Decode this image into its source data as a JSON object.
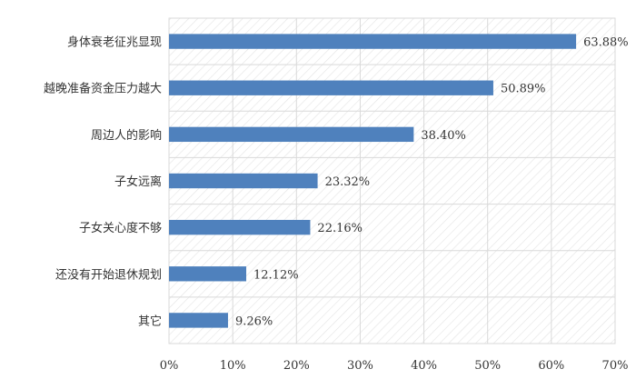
{
  "chart_data": {
    "type": "bar",
    "orientation": "horizontal",
    "categories": [
      "身体衰老征兆显现",
      "越晚准备资金压力越大",
      "周边人的影响",
      "子女远离",
      "子女关心度不够",
      "还没有开始退休规划",
      "其它"
    ],
    "values": [
      63.88,
      50.89,
      38.4,
      23.32,
      22.16,
      12.12,
      9.26
    ],
    "data_labels": [
      "63.88%",
      "50.89%",
      "38.40%",
      "23.32%",
      "22.16%",
      "12.12%",
      "9.26%"
    ],
    "x_ticks": [
      "0%",
      "10%",
      "20%",
      "30%",
      "40%",
      "50%",
      "60%",
      "70%"
    ],
    "xlim": [
      0,
      70
    ],
    "title": "",
    "xlabel": "",
    "ylabel": "",
    "grid": true,
    "plot_background": "diagonal-hatch",
    "colors": {
      "bar": "#4F81BD",
      "grid": "#D9D9D9",
      "hatch": "#E3E3E3",
      "text": "#333333"
    }
  }
}
